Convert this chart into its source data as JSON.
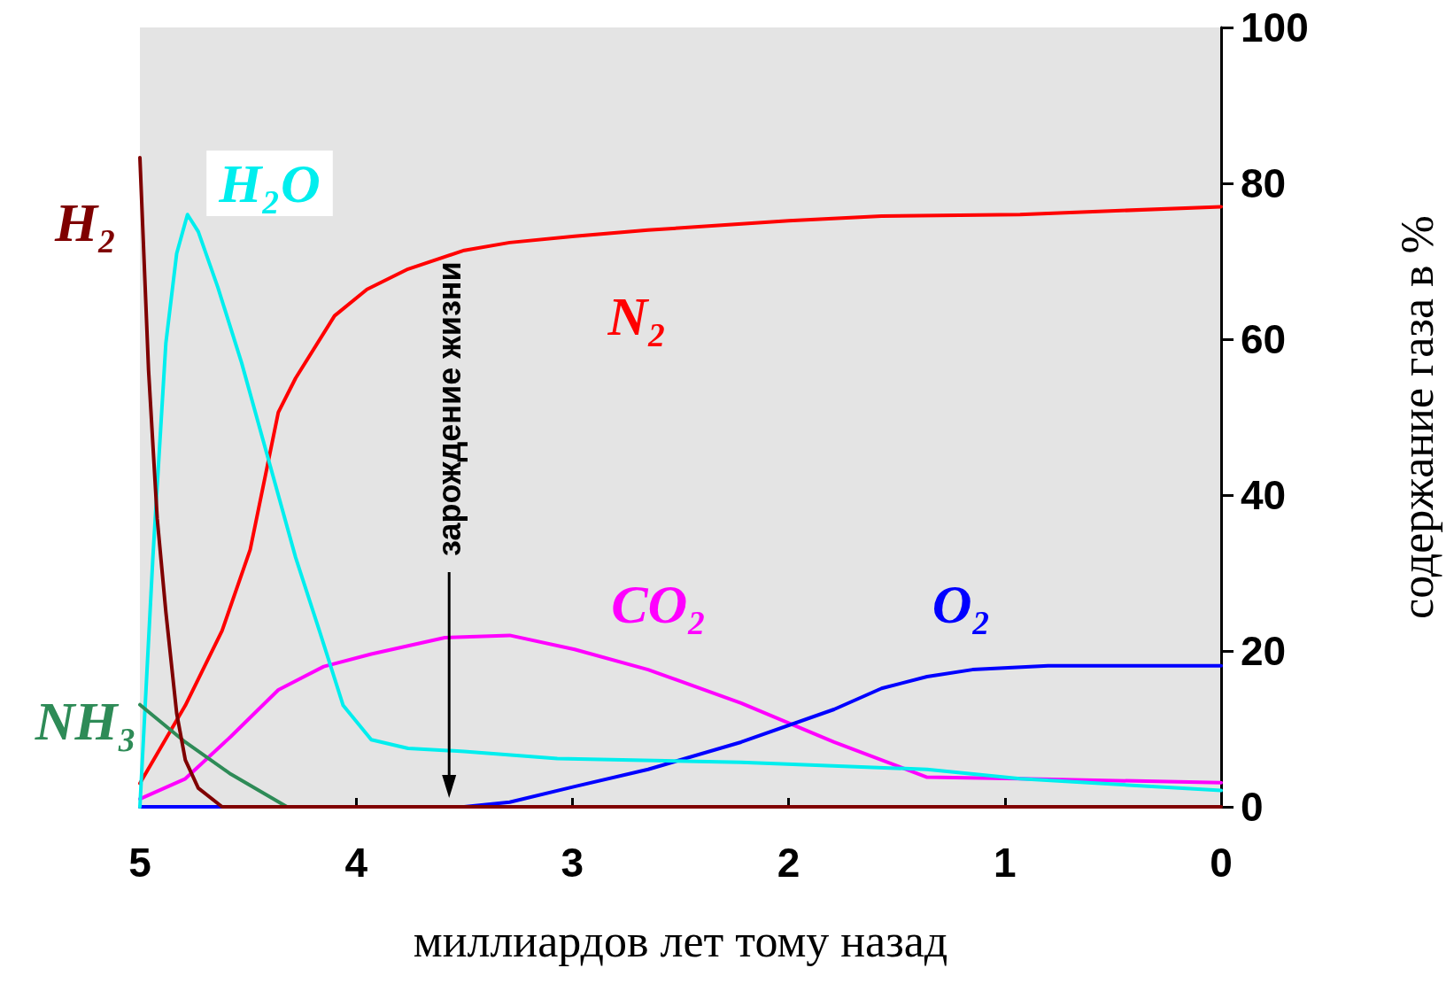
{
  "chart_data": {
    "type": "line",
    "xlabel": "миллиардов лет тому назад",
    "ylabel": "содержание газа в %",
    "xlim": [
      5,
      0
    ],
    "xticks": [
      5,
      4,
      3,
      2,
      1,
      0
    ],
    "ylim": [
      0,
      100
    ],
    "yticks": [
      0,
      20,
      40,
      60,
      80,
      100
    ],
    "grid": false,
    "legend": false,
    "marker": "none",
    "line_style": "solid",
    "ref_lines": [
      {
        "axis": "x",
        "value": 3.57,
        "label": "зарождение жизни",
        "color": "#000000"
      }
    ],
    "series": [
      {
        "name": "N₂",
        "color": "#ff0000",
        "x": [
          5,
          4.79,
          4.62,
          4.49,
          4.36,
          4.28,
          4.1,
          3.95,
          3.76,
          3.5,
          3.29,
          2.99,
          2.65,
          2.0,
          1.57,
          0.93,
          0
        ],
        "values": [
          3,
          13,
          22.6,
          33,
          50.6,
          55,
          63,
          66.4,
          69,
          71.4,
          72.4,
          73.2,
          74,
          75.2,
          75.8,
          76,
          77
        ]
      },
      {
        "name": "CO₂",
        "color": "#ff00ff",
        "x": [
          5,
          4.79,
          4.58,
          4.36,
          4.15,
          3.93,
          3.59,
          3.29,
          2.99,
          2.65,
          2.22,
          1.79,
          1.36,
          0.93,
          0
        ],
        "values": [
          1,
          3.6,
          9,
          15,
          18,
          19.6,
          21.7,
          22,
          20.2,
          17.6,
          13.3,
          8.3,
          3.8,
          3.6,
          3.1
        ]
      },
      {
        "name": "O₂",
        "color": "#0000ff",
        "x": [
          5,
          3.5,
          3.29,
          2.99,
          2.65,
          2.22,
          1.79,
          1.57,
          1.36,
          1.15,
          0.8,
          0
        ],
        "values": [
          0,
          0,
          0.6,
          2.6,
          4.8,
          8.3,
          12.5,
          15.2,
          16.7,
          17.6,
          18.1,
          18.1
        ]
      },
      {
        "name": "H₂O",
        "color": "#00eeee",
        "x": [
          5,
          4.94,
          4.88,
          4.83,
          4.78,
          4.73,
          4.64,
          4.53,
          4.4,
          4.28,
          4.17,
          4.06,
          3.93,
          3.76,
          3.5,
          3.07,
          2.22,
          1.36,
          0.93,
          0
        ],
        "values": [
          0,
          32,
          59.5,
          71,
          76,
          73.8,
          66.7,
          57,
          44,
          32,
          22.6,
          13,
          8.6,
          7.5,
          7.1,
          6.2,
          5.7,
          4.8,
          3.6,
          2.1
        ]
      },
      {
        "name": "NH₃",
        "color": "#2e8b57",
        "x": [
          5,
          4.79,
          4.58,
          4.32
        ],
        "values": [
          13.1,
          8.3,
          4.2,
          0
        ]
      },
      {
        "name": "H₂",
        "color": "#7f0000",
        "x": [
          5,
          4.96,
          4.92,
          4.88,
          4.83,
          4.79,
          4.73,
          4.62,
          0
        ],
        "values": [
          83.3,
          56,
          37,
          25,
          12,
          6,
          2.4,
          0,
          0
        ]
      }
    ]
  }
}
